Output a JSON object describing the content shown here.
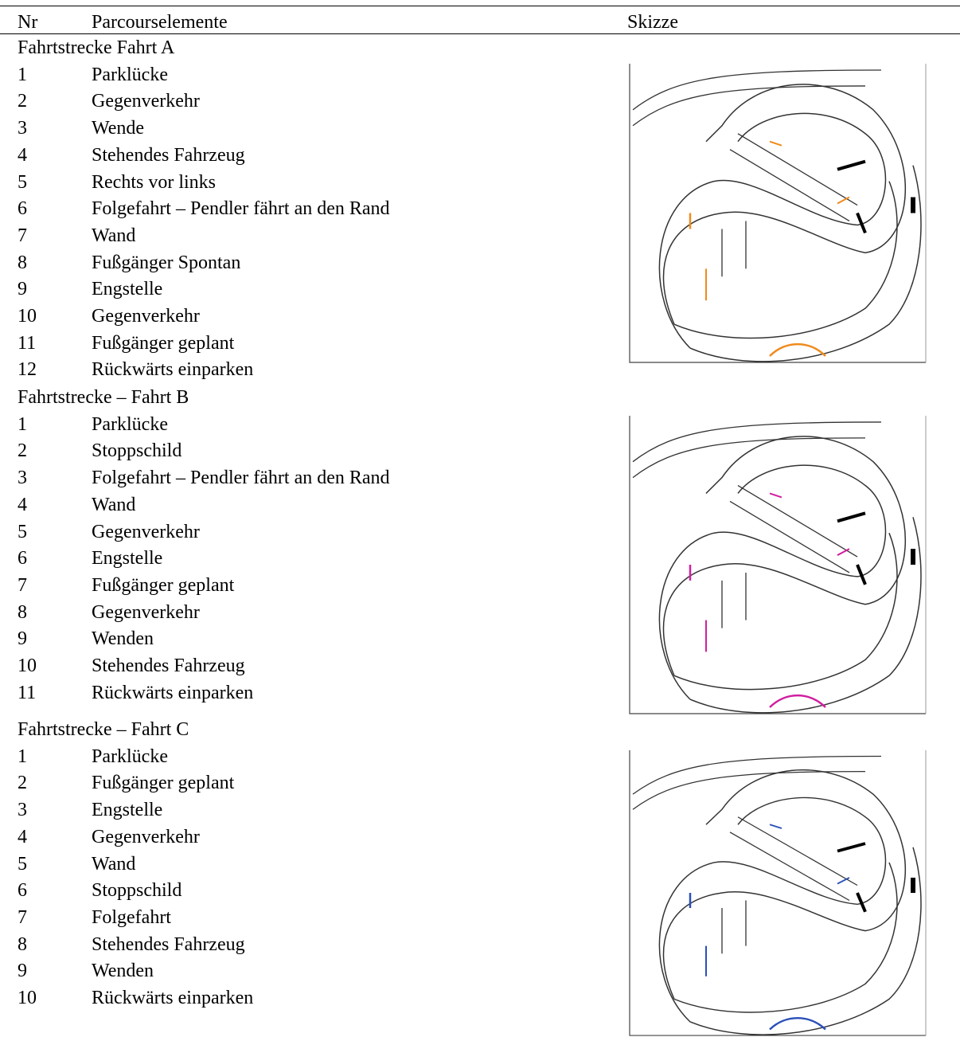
{
  "header": {
    "nr": "Nr",
    "elements": "Parcourselemente",
    "sketch": "Skizze"
  },
  "sections": [
    {
      "title": "Fahrtstrecke Fahrt A",
      "items": [
        {
          "nr": 1,
          "label": "Parklücke"
        },
        {
          "nr": 2,
          "label": "Gegenverkehr"
        },
        {
          "nr": 3,
          "label": "Wende"
        },
        {
          "nr": 4,
          "label": "Stehendes Fahrzeug"
        },
        {
          "nr": 5,
          "label": "Rechts vor links"
        },
        {
          "nr": 6,
          "label": "Folgefahrt – Pendler fährt an den Rand"
        },
        {
          "nr": 7,
          "label": "Wand"
        },
        {
          "nr": 8,
          "label": "Fußgänger Spontan"
        },
        {
          "nr": 9,
          "label": "Engstelle"
        },
        {
          "nr": 10,
          "label": "Gegenverkehr"
        },
        {
          "nr": 11,
          "label": "Fußgänger geplant"
        },
        {
          "nr": 12,
          "label": "Rückwärts einparken"
        }
      ]
    },
    {
      "title": "Fahrtstrecke – Fahrt B",
      "items": [
        {
          "nr": 1,
          "label": "Parklücke"
        },
        {
          "nr": 2,
          "label": "Stoppschild"
        },
        {
          "nr": 3,
          "label": "Folgefahrt – Pendler fährt an den Rand"
        },
        {
          "nr": 4,
          "label": "Wand"
        },
        {
          "nr": 5,
          "label": "Gegenverkehr"
        },
        {
          "nr": 6,
          "label": "Engstelle"
        },
        {
          "nr": 7,
          "label": "Fußgänger geplant"
        },
        {
          "nr": 8,
          "label": "Gegenverkehr"
        },
        {
          "nr": 9,
          "label": "Wenden"
        },
        {
          "nr": 10,
          "label": "Stehendes Fahrzeug"
        },
        {
          "nr": 11,
          "label": "Rückwärts einparken"
        }
      ]
    },
    {
      "title": "Fahrtstrecke – Fahrt C",
      "items": [
        {
          "nr": 1,
          "label": "Parklücke"
        },
        {
          "nr": 2,
          "label": "Fußgänger geplant"
        },
        {
          "nr": 3,
          "label": "Engstelle"
        },
        {
          "nr": 4,
          "label": "Gegenverkehr"
        },
        {
          "nr": 5,
          "label": "Wand"
        },
        {
          "nr": 6,
          "label": "Stoppschild"
        },
        {
          "nr": 7,
          "label": "Folgefahrt"
        },
        {
          "nr": 8,
          "label": "Stehendes Fahrzeug"
        },
        {
          "nr": 9,
          "label": "Wenden"
        },
        {
          "nr": 10,
          "label": "Rückwärts einparken"
        }
      ]
    }
  ]
}
